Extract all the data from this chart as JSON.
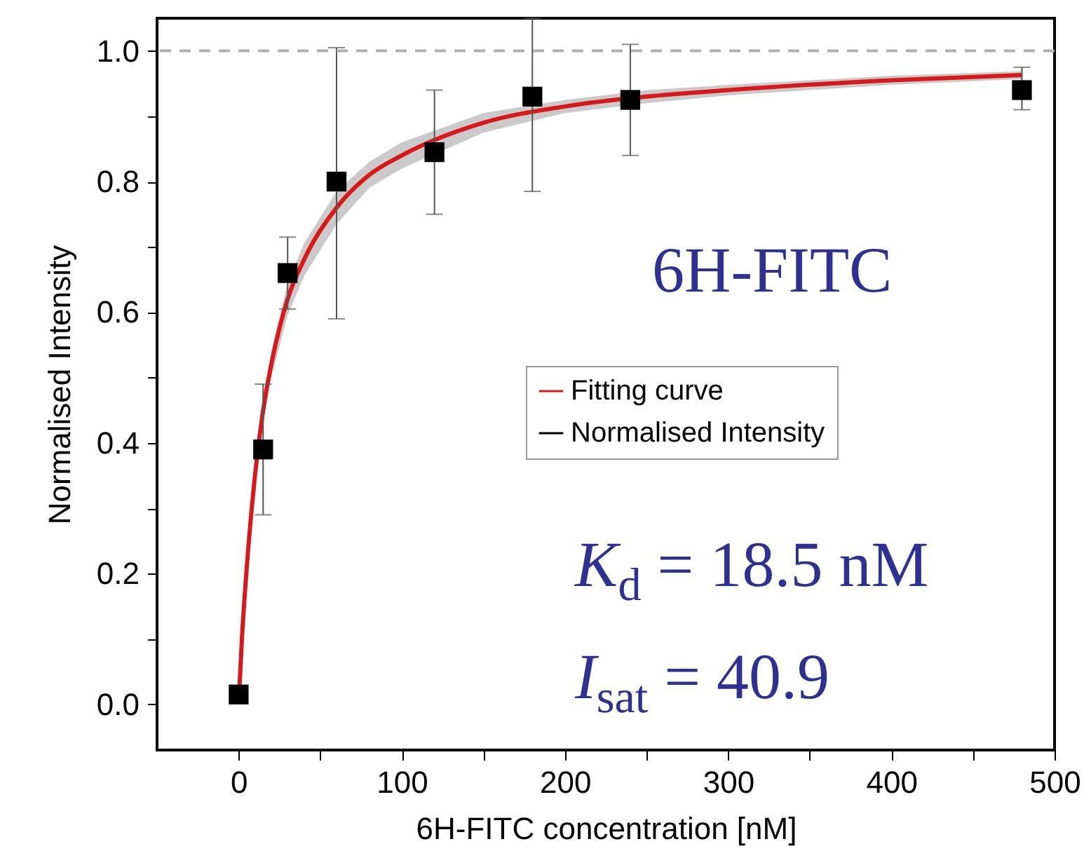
{
  "chart_data": {
    "type": "scatter",
    "xlabel": "6H-FITC concentration [nM]",
    "ylabel": "Normalised Intensity",
    "xlim": [
      -50,
      500
    ],
    "xticks": [
      0,
      {
        "value": 50,
        "label": null
      },
      100,
      {
        "value": 150,
        "label": null
      },
      200,
      {
        "value": 250,
        "label": null
      },
      300,
      {
        "value": 350,
        "label": null
      },
      400,
      {
        "value": 450,
        "label": null
      },
      500
    ],
    "ylim": [
      -0.07,
      1.05
    ],
    "yticks": [
      {
        "value": 0,
        "label": "0.0"
      },
      {
        "value": 0.1,
        "label": null
      },
      0.2,
      {
        "value": 0.3,
        "label": null
      },
      0.4,
      {
        "value": 0.5,
        "label": null
      },
      0.6,
      {
        "value": 0.7,
        "label": null
      },
      0.8,
      {
        "value": 0.9,
        "label": null
      },
      {
        "value": 1,
        "label": "1.0"
      }
    ],
    "grid": false,
    "legend": "right",
    "marker": "square",
    "ref_lines": [
      {
        "axis": "y",
        "value": 1.0,
        "color": "#b0b0b0",
        "line_style": "dashed"
      }
    ],
    "annotations": [
      "6H-FITC",
      "K$_{d}$ = 18.5 nM",
      "I$_{sat}$ = 40.9"
    ],
    "series": [
      {
        "name": "Fitting curve",
        "type": "line",
        "marker": "none",
        "color": "#d7191c",
        "x": [
          0,
          2,
          5,
          10,
          15,
          20,
          30,
          40,
          60,
          80,
          100,
          150,
          200,
          250,
          300,
          400,
          480
        ],
        "values": [
          0,
          0.1,
          0.21,
          0.35,
          0.45,
          0.52,
          0.62,
          0.68,
          0.76,
          0.81,
          0.84,
          0.89,
          0.915,
          0.93,
          0.94,
          0.955,
          0.963
        ],
        "lower": [
          0,
          0.09,
          0.2,
          0.335,
          0.43,
          0.5,
          0.595,
          0.655,
          0.735,
          0.79,
          0.82,
          0.875,
          0.905,
          0.92,
          0.932,
          0.948,
          0.957
        ],
        "upper": [
          0,
          0.11,
          0.22,
          0.365,
          0.47,
          0.54,
          0.645,
          0.705,
          0.785,
          0.83,
          0.86,
          0.905,
          0.925,
          0.94,
          0.948,
          0.962,
          0.969
        ]
      },
      {
        "name": "Normalised Intensity",
        "type": "scatter",
        "color": "#000000",
        "x": [
          0,
          15,
          30,
          60,
          120,
          180,
          240,
          480
        ],
        "values": [
          0.015,
          0.39,
          0.66,
          0.8,
          0.845,
          0.93,
          0.925,
          0.94
        ],
        "errors": [
          null,
          [
            0.29,
            0.49
          ],
          [
            0.605,
            0.715
          ],
          [
            0.59,
            1.005
          ],
          [
            0.75,
            0.94
          ],
          [
            0.785,
            1.05
          ],
          [
            0.84,
            1.01
          ],
          [
            0.91,
            0.975
          ]
        ]
      }
    ]
  }
}
